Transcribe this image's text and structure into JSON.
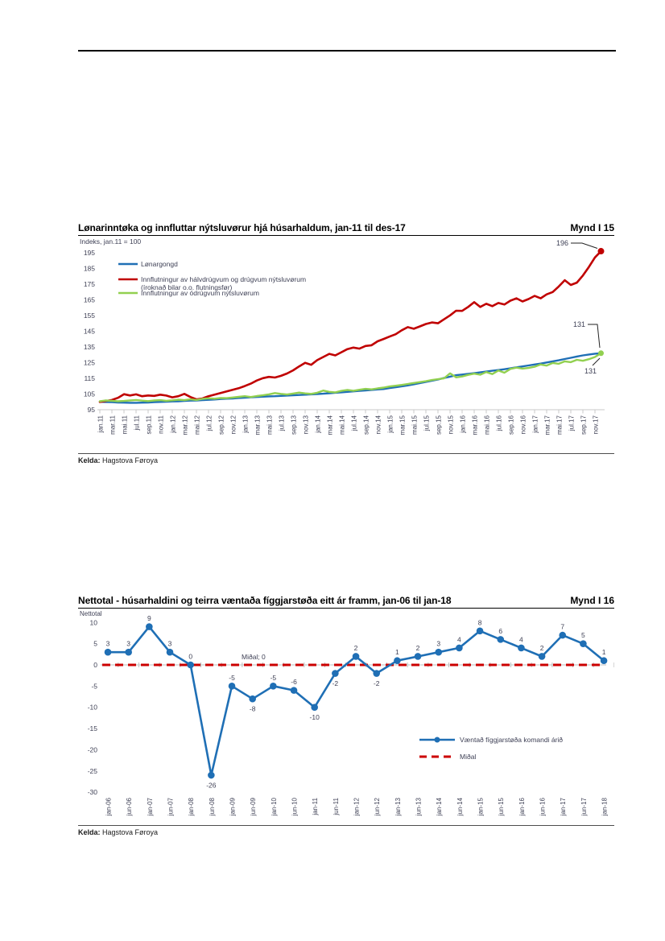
{
  "page": {
    "source_label": "Kelda:",
    "source": "Hagstova Føroya"
  },
  "chart_data": [
    {
      "type": "line",
      "title": "Lønarinntøka og innfluttar nýtsluvørur hjá húsarhaldum, jan-11 til des-17",
      "figure_label": "Mynd I 15",
      "subtitle": "Indeks, jan.11 = 100",
      "source_label": "Kelda:",
      "source": "Hagstova Føroya",
      "ylim": [
        95,
        195
      ],
      "ytick_step": 10,
      "xtick_labels": [
        "jan.11",
        "mar.11",
        "mai.11",
        "jul.11",
        "sep.11",
        "nov.11",
        "jan.12",
        "mar.12",
        "mai.12",
        "jul.12",
        "sep.12",
        "nov.12",
        "jan.13",
        "mar.13",
        "mai.13",
        "jul.13",
        "sep.13",
        "nov.13",
        "jan.14",
        "mar.14",
        "mai.14",
        "jul.14",
        "sep.14",
        "nov.14",
        "jan.15",
        "mar.15",
        "mai.15",
        "jul.15",
        "sep.15",
        "nov.15",
        "jan.16",
        "mar.16",
        "mai.16",
        "jul.16",
        "sep.16",
        "nov.16",
        "jan.17",
        "mar.17",
        "mai.17",
        "jul.17",
        "sep.17",
        "nov.17"
      ],
      "series": [
        {
          "name": "Lønargongd",
          "color": "#1f6fb5",
          "values": [
            100.0,
            99.9,
            99.8,
            99.6,
            99.5,
            99.4,
            99.4,
            99.5,
            99.6,
            99.8,
            100.0,
            100.1,
            100.3,
            100.4,
            100.6,
            100.8,
            100.9,
            101.1,
            101.3,
            101.5,
            101.8,
            102.0,
            102.2,
            102.5,
            102.7,
            102.9,
            103.1,
            103.3,
            103.5,
            103.6,
            103.8,
            104.0,
            104.2,
            104.4,
            104.6,
            104.8,
            105.0,
            105.2,
            105.5,
            105.8,
            106.1,
            106.4,
            106.7,
            107.0,
            107.3,
            107.6,
            107.9,
            108.2,
            108.8,
            109.3,
            109.9,
            110.5,
            111.2,
            111.9,
            112.7,
            113.5,
            114.3,
            115.2,
            116.1,
            117.0,
            117.4,
            117.8,
            118.3,
            118.8,
            119.3,
            119.8,
            120.3,
            120.8,
            121.4,
            122.0,
            122.6,
            123.2,
            123.8,
            124.4,
            125.1,
            125.8,
            126.5,
            127.3,
            128.1,
            128.9,
            129.6,
            130.2,
            130.7,
            131.0
          ],
          "end_label": "131",
          "end_label_color": "#2e75b6"
        },
        {
          "name": "Innflutningur av hálvdrúgvum og drúgvum nýtsluvørum",
          "name2": "(íroknað bilar o.o. flutningsfør)",
          "color": "#c00000",
          "values": [
            100.0,
            100.6,
            101.2,
            102.6,
            104.9,
            104.1,
            104.8,
            103.6,
            104.1,
            103.8,
            104.6,
            104.0,
            102.9,
            103.6,
            105.1,
            103.1,
            101.6,
            102.2,
            103.6,
            104.6,
            105.6,
            106.7,
            107.7,
            108.7,
            110.1,
            111.6,
            113.6,
            115.1,
            115.9,
            115.5,
            116.6,
            118.1,
            120.1,
            122.6,
            124.9,
            123.6,
            126.6,
            128.6,
            130.6,
            129.6,
            131.6,
            133.6,
            134.6,
            133.9,
            135.6,
            136.1,
            138.6,
            140.1,
            141.6,
            143.1,
            145.6,
            147.6,
            146.6,
            148.1,
            149.6,
            150.6,
            150.1,
            152.6,
            155.1,
            158.1,
            158.0,
            160.5,
            163.5,
            160.5,
            162.5,
            161.0,
            163.0,
            162.0,
            164.5,
            166.0,
            164.0,
            165.5,
            167.5,
            166.0,
            168.5,
            170.0,
            173.5,
            177.5,
            174.5,
            176.0,
            180.5,
            186.0,
            192.0,
            196.0
          ],
          "end_label": "196",
          "end_label_color": "#c00000"
        },
        {
          "name": "Innflutningur av ódrúgvum nýtsluvørum",
          "color": "#92d050",
          "values": [
            100.4,
            100.9,
            100.7,
            100.4,
            100.6,
            100.9,
            101.2,
            100.8,
            100.5,
            100.9,
            101.1,
            100.7,
            101.0,
            101.4,
            101.1,
            101.6,
            101.2,
            101.9,
            102.3,
            102.0,
            102.5,
            102.4,
            102.8,
            103.2,
            103.6,
            103.1,
            103.7,
            104.2,
            104.8,
            105.6,
            105.1,
            104.7,
            105.3,
            105.9,
            105.4,
            105.1,
            105.8,
            107.2,
            106.4,
            106.1,
            107.0,
            107.6,
            107.1,
            107.7,
            108.3,
            108.0,
            108.6,
            109.1,
            109.8,
            110.3,
            110.8,
            111.4,
            112.0,
            112.6,
            113.2,
            113.9,
            114.5,
            115.0,
            118.2,
            115.6,
            116.2,
            117.2,
            118.0,
            117.3,
            119.0,
            117.7,
            120.0,
            118.6,
            121.0,
            121.8,
            121.2,
            121.6,
            122.4,
            123.8,
            123.1,
            124.8,
            124.3,
            125.8,
            125.3,
            126.8,
            126.2,
            127.2,
            128.6,
            131.0
          ],
          "end_label": "131",
          "end_label_color": "#7cb83e"
        }
      ]
    },
    {
      "type": "line",
      "title": "Nettotal - húsarhaldini og teirra væntaða fíggjarstøða eitt ár framm, jan-06 til jan-18",
      "figure_label": "Mynd I 16",
      "axis_title": "Nettotal",
      "source_label": "Kelda:",
      "source": "Hagstova Føroya",
      "ylim": [
        -30,
        10
      ],
      "ytick_step": 5,
      "categories": [
        "jan-06",
        "jun-06",
        "jan-07",
        "jun-07",
        "jan-08",
        "jun-08",
        "jan-09",
        "jun-09",
        "jan-10",
        "jun-10",
        "jan-11",
        "jun-11",
        "jan-12",
        "jun-12",
        "jan-13",
        "jun-13",
        "jan-14",
        "jun-14",
        "jan-15",
        "jun-15",
        "jan-16",
        "jun-16",
        "jan-17",
        "jun-17",
        "jan-18"
      ],
      "values": [
        3,
        3,
        9,
        3,
        0,
        -26,
        -5,
        -8,
        -5,
        -6,
        -10,
        -2,
        2,
        -2,
        1,
        2,
        3,
        4,
        8,
        6,
        4,
        2,
        7,
        5,
        1
      ],
      "label_pos": [
        "above",
        "above",
        "above",
        "above",
        "above",
        "below",
        "above",
        "below",
        "above",
        "above",
        "below",
        "below",
        "above",
        "below",
        "above",
        "above",
        "above",
        "above",
        "above",
        "above",
        "above",
        "above",
        "above",
        "above",
        "above"
      ],
      "line_color": "#1f6fb5",
      "label_color": "#2e75b6",
      "mean_value": 0,
      "mean_label": "Miðal; 0",
      "mean_color": "#cc0000",
      "legend": [
        {
          "label": "Væntað fíggjarstøða komandi árið",
          "style": "line-marker",
          "color": "#1f6fb5"
        },
        {
          "label": "Miðal",
          "style": "dashed",
          "color": "#cc0000"
        }
      ]
    }
  ]
}
